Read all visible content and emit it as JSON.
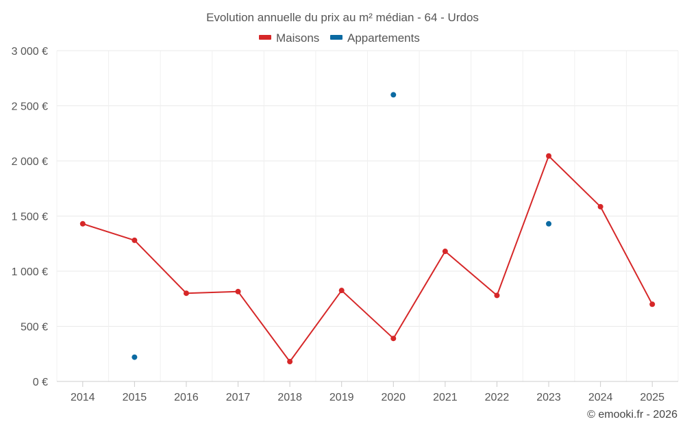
{
  "chart_data": {
    "type": "line",
    "title": "Evolution annuelle du prix au m² médian - 64 - Urdos",
    "categories": [
      "2014",
      "2015",
      "2016",
      "2017",
      "2018",
      "2019",
      "2020",
      "2021",
      "2022",
      "2023",
      "2024",
      "2025"
    ],
    "y_tick_labels": [
      "0 €",
      "500 €",
      "1 000 €",
      "1 500 €",
      "2 000 €",
      "2 500 €",
      "3 000 €"
    ],
    "y_ticks": [
      0,
      500,
      1000,
      1500,
      2000,
      2500,
      3000
    ],
    "ylim": [
      0,
      3000
    ],
    "legend_position": "top-center",
    "series": [
      {
        "name": "Maisons",
        "color": "#d62728",
        "line": true,
        "values": [
          1430,
          1280,
          800,
          815,
          180,
          825,
          390,
          1180,
          780,
          2045,
          1585,
          700
        ]
      },
      {
        "name": "Appartements",
        "color": "#0b6aa2",
        "line": false,
        "values": [
          null,
          220,
          null,
          null,
          null,
          null,
          2600,
          null,
          null,
          1430,
          null,
          null
        ]
      }
    ],
    "credit": "© emooki.fr - 2026"
  }
}
